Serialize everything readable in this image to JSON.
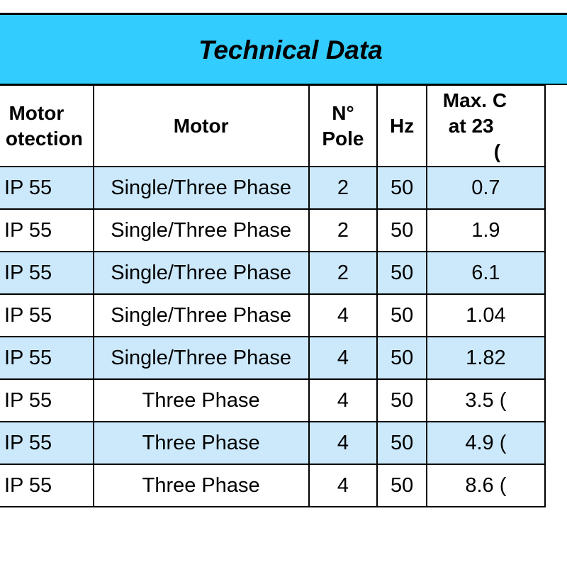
{
  "title": "Technical Data",
  "headers": {
    "protection_line1": "Motor",
    "protection_line2": "otection",
    "motor": "Motor",
    "pole_line1": "N°",
    "pole_line2": "Pole",
    "hz": "Hz",
    "max_line1": "Max. C",
    "max_line2": "at 23",
    "max_line3": "("
  },
  "rows": [
    {
      "protection": "IP 55",
      "motor": "Single/Three Phase",
      "pole": "2",
      "hz": "50",
      "max": "0.7"
    },
    {
      "protection": "IP 55",
      "motor": "Single/Three Phase",
      "pole": "2",
      "hz": "50",
      "max": "1.9"
    },
    {
      "protection": "IP 55",
      "motor": "Single/Three Phase",
      "pole": "2",
      "hz": "50",
      "max": "6.1"
    },
    {
      "protection": "IP 55",
      "motor": "Single/Three Phase",
      "pole": "4",
      "hz": "50",
      "max": "1.04"
    },
    {
      "protection": "IP 55",
      "motor": "Single/Three Phase",
      "pole": "4",
      "hz": "50",
      "max": "1.82"
    },
    {
      "protection": "IP 55",
      "motor": "Three Phase",
      "pole": "4",
      "hz": "50",
      "max": "3.5 ("
    },
    {
      "protection": "IP 55",
      "motor": "Three Phase",
      "pole": "4",
      "hz": "50",
      "max": "4.9 ("
    },
    {
      "protection": "IP 55",
      "motor": "Three Phase",
      "pole": "4",
      "hz": "50",
      "max": "8.6 ("
    }
  ],
  "colors": {
    "title_background": "#33ccff",
    "alt_row_background": "#cce9fb"
  }
}
